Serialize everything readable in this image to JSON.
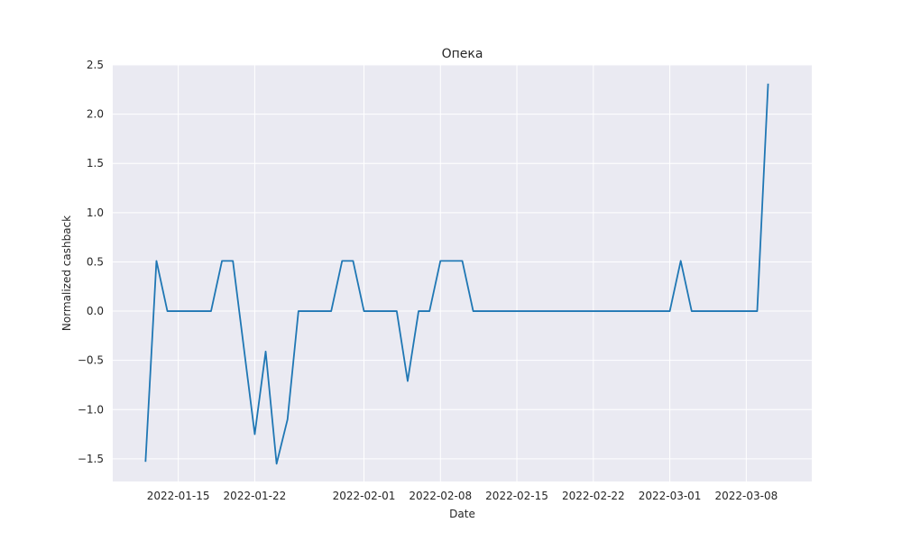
{
  "chart_data": {
    "type": "line",
    "title": "Опека",
    "xlabel": "Date",
    "ylabel": "Normalized cashback",
    "grid": true,
    "colors": {
      "background": "#eaeaf2",
      "grid": "#ffffff",
      "line": "#1f77b4"
    },
    "xlim": [
      "2022-01-09",
      "2022-03-14"
    ],
    "ylim": [
      -1.73,
      2.5
    ],
    "x_ticks": [
      "2022-01-15",
      "2022-01-22",
      "2022-02-01",
      "2022-02-08",
      "2022-02-15",
      "2022-02-22",
      "2022-03-01",
      "2022-03-08"
    ],
    "y_ticks": [
      {
        "value": 2.5,
        "label": "2.5"
      },
      {
        "value": 2.0,
        "label": "2.0"
      },
      {
        "value": 1.5,
        "label": "1.5"
      },
      {
        "value": 1.0,
        "label": "1.0"
      },
      {
        "value": 0.5,
        "label": "0.5"
      },
      {
        "value": 0.0,
        "label": "0.0"
      },
      {
        "value": -0.5,
        "label": "−0.5"
      },
      {
        "value": -1.0,
        "label": "−1.0"
      },
      {
        "value": -1.5,
        "label": "−1.5"
      }
    ],
    "series": [
      {
        "x": [
          "2022-01-12",
          "2022-01-13",
          "2022-01-14",
          "2022-01-15",
          "2022-01-16",
          "2022-01-17",
          "2022-01-18",
          "2022-01-19",
          "2022-01-20",
          "2022-01-21",
          "2022-01-22",
          "2022-01-23",
          "2022-01-24",
          "2022-01-25",
          "2022-01-26",
          "2022-01-27",
          "2022-01-28",
          "2022-01-29",
          "2022-01-30",
          "2022-01-31",
          "2022-02-01",
          "2022-02-02",
          "2022-02-03",
          "2022-02-04",
          "2022-02-05",
          "2022-02-06",
          "2022-02-07",
          "2022-02-08",
          "2022-02-09",
          "2022-02-10",
          "2022-02-11",
          "2022-02-12",
          "2022-02-13",
          "2022-02-14",
          "2022-02-15",
          "2022-02-16",
          "2022-02-17",
          "2022-02-18",
          "2022-02-19",
          "2022-02-20",
          "2022-02-21",
          "2022-02-22",
          "2022-02-23",
          "2022-02-24",
          "2022-02-25",
          "2022-02-26",
          "2022-02-27",
          "2022-02-28",
          "2022-03-01",
          "2022-03-02",
          "2022-03-03",
          "2022-03-04",
          "2022-03-05",
          "2022-03-06",
          "2022-03-07",
          "2022-03-08",
          "2022-03-09",
          "2022-03-10"
        ],
        "y": [
          -1.53,
          0.51,
          0,
          0,
          0,
          0,
          0,
          0.51,
          0.51,
          -0.37,
          -1.25,
          -0.41,
          -1.55,
          -1.1,
          0,
          0,
          0,
          0,
          0.51,
          0.51,
          0,
          0,
          0,
          0,
          -0.71,
          0,
          0,
          0.51,
          0.51,
          0.51,
          0,
          0,
          0,
          0,
          0,
          0,
          0,
          0,
          0,
          0,
          0,
          0,
          0,
          0,
          0,
          0,
          0,
          0,
          0,
          0.51,
          0,
          0,
          0,
          0,
          0,
          0,
          0,
          2.31
        ]
      }
    ]
  }
}
